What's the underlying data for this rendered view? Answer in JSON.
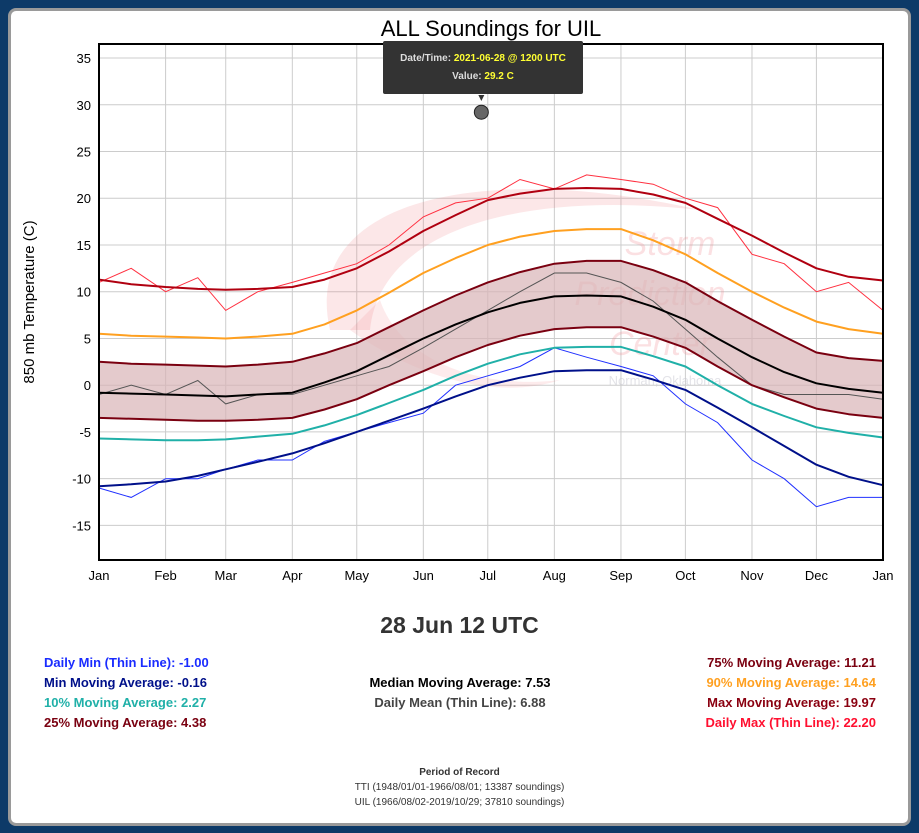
{
  "chart_data": {
    "type": "line",
    "title": "ALL Soundings for UIL",
    "ylabel": "850 mb Temperature (C)",
    "xlabel": "",
    "ylim": [
      -18.7,
      36.5
    ],
    "yticks": [
      35,
      30,
      25,
      20,
      15,
      10,
      5,
      0,
      -5,
      -10,
      -15
    ],
    "xticks": [
      "Jan",
      "Feb",
      "Mar",
      "Apr",
      "May",
      "Jun",
      "Jul",
      "Aug",
      "Sep",
      "Oct",
      "Nov",
      "Dec",
      "Jan"
    ],
    "xtick_days": [
      0,
      31,
      59,
      90,
      120,
      151,
      181,
      212,
      243,
      273,
      304,
      334,
      365
    ],
    "grid": true,
    "watermark": "Storm Prediction Center, Norman, Oklahoma",
    "band": {
      "lower": "25% Moving Average",
      "upper": "75% Moving Average",
      "color": "#d9b3b6"
    },
    "sample_days": [
      0,
      15,
      31,
      46,
      59,
      74,
      90,
      105,
      120,
      135,
      151,
      166,
      181,
      196,
      212,
      227,
      243,
      258,
      273,
      288,
      304,
      319,
      334,
      349,
      365
    ],
    "smooth_series": [
      {
        "key": "max_ma",
        "color": "#b00010",
        "values": [
          11.3,
          10.8,
          10.5,
          10.3,
          10.2,
          10.3,
          10.5,
          11.3,
          12.5,
          14.3,
          16.5,
          18.2,
          19.8,
          20.5,
          21,
          21.1,
          21,
          20.4,
          19.5,
          17.8,
          16,
          14.2,
          12.5,
          11.6,
          11.2
        ]
      },
      {
        "key": "p90",
        "color": "#ffa020",
        "values": [
          5.5,
          5.3,
          5.2,
          5.1,
          5.0,
          5.2,
          5.5,
          6.5,
          8,
          9.9,
          12,
          13.6,
          15,
          15.9,
          16.5,
          16.7,
          16.7,
          15.5,
          14,
          12,
          10,
          8.3,
          6.8,
          6,
          5.5
        ]
      },
      {
        "key": "p75",
        "color": "#7a0010",
        "values": [
          2.5,
          2.3,
          2.2,
          2.1,
          2.0,
          2.2,
          2.5,
          3.4,
          4.5,
          6.2,
          8,
          9.6,
          11,
          12.1,
          13,
          13.3,
          13.3,
          12.3,
          11,
          9,
          7,
          5.2,
          3.5,
          2.9,
          2.6
        ]
      },
      {
        "key": "median",
        "color": "#000000",
        "values": [
          -0.8,
          -0.9,
          -1.0,
          -1.1,
          -1.2,
          -1.0,
          -0.8,
          0.3,
          1.5,
          3.2,
          5,
          6.5,
          7.8,
          8.8,
          9.5,
          9.6,
          9.5,
          8.4,
          7,
          5,
          3,
          1.4,
          0.2,
          -0.4,
          -0.8
        ]
      },
      {
        "key": "p25",
        "color": "#7a0010",
        "values": [
          -3.5,
          -3.6,
          -3.7,
          -3.8,
          -3.8,
          -3.7,
          -3.5,
          -2.6,
          -1.5,
          0,
          1.5,
          3,
          4.3,
          5.3,
          6,
          6.2,
          6.2,
          5.2,
          4,
          2,
          0,
          -1.3,
          -2.5,
          -3.1,
          -3.5
        ]
      },
      {
        "key": "p10",
        "color": "#20b0a8",
        "values": [
          -5.7,
          -5.8,
          -5.9,
          -5.9,
          -5.8,
          -5.5,
          -5.2,
          -4.3,
          -3.2,
          -1.9,
          -0.5,
          1,
          2.3,
          3.3,
          4,
          4.1,
          4.1,
          3.1,
          2,
          0,
          -2,
          -3.3,
          -4.5,
          -5.1,
          -5.6
        ]
      },
      {
        "key": "min_ma",
        "color": "#00108a",
        "values": [
          -10.8,
          -10.6,
          -10.3,
          -9.7,
          -9,
          -8.2,
          -7.3,
          -6.2,
          -5,
          -3.8,
          -2.5,
          -1.2,
          0,
          0.8,
          1.5,
          1.6,
          1.6,
          0.6,
          -0.5,
          -2.4,
          -4.5,
          -6.5,
          -8.5,
          -9.8,
          -10.7
        ]
      }
    ],
    "thin_series": [
      {
        "key": "daily_max",
        "color": "#ff3040",
        "values": [
          11,
          12.5,
          10,
          11.5,
          8,
          10,
          11,
          12,
          13,
          15,
          18,
          19.5,
          20,
          22,
          21,
          22.5,
          22,
          21.5,
          20,
          19,
          14,
          13,
          10,
          11,
          8
        ]
      },
      {
        "key": "daily_mean",
        "color": "#555555",
        "values": [
          -1,
          0,
          -1,
          0.5,
          -2,
          -1,
          -1,
          0,
          1,
          2,
          4,
          6,
          8,
          10,
          12,
          12,
          11,
          9,
          6,
          3,
          0,
          -1,
          -1,
          -1,
          -1.5
        ]
      },
      {
        "key": "daily_min",
        "color": "#2030ff",
        "values": [
          -11,
          -12,
          -10,
          -10,
          -9,
          -8,
          -8,
          -6,
          -5,
          -4,
          -3,
          0,
          1,
          2,
          4,
          3,
          2,
          1,
          -2,
          -4,
          -8,
          -10,
          -13,
          -12,
          -12
        ]
      }
    ],
    "highlight": {
      "day": 178,
      "value": 29.2
    }
  },
  "tooltip": {
    "date_label": "Date/Time:",
    "date_value": "2021-06-28 @ 1200 UTC",
    "value_label": "Value:",
    "value_value": "29.2 C"
  },
  "selected_date": "28 Jun 12 UTC",
  "stats_left": [
    {
      "text": "Daily Min (Thin Line): -1.00",
      "color": "#1a2cff"
    },
    {
      "text": "Min Moving Average: -0.16",
      "color": "#00108a"
    },
    {
      "text": "10% Moving Average: 2.27",
      "color": "#20b0a8"
    },
    {
      "text": "25% Moving Average: 4.38",
      "color": "#7a0010"
    }
  ],
  "stats_mid": [
    {
      "text": "Median Moving Average: 7.53",
      "color": "#000000"
    },
    {
      "text": "Daily Mean (Thin Line): 6.88",
      "color": "#444444"
    }
  ],
  "stats_right": [
    {
      "text": "75% Moving Average: 11.21",
      "color": "#7a0010"
    },
    {
      "text": "90% Moving Average: 14.64",
      "color": "#ffa020"
    },
    {
      "text": "Max Moving Average: 19.97",
      "color": "#8a0010"
    },
    {
      "text": "Daily Max (Thin Line): 22.20",
      "color": "#ff1030"
    }
  ],
  "period": {
    "title": "Period of Record",
    "lines": [
      "TTI (1948/01/01-1966/08/01; 13387 soundings)",
      "UIL (1966/08/02-2019/10/29; 37810 soundings)"
    ]
  }
}
